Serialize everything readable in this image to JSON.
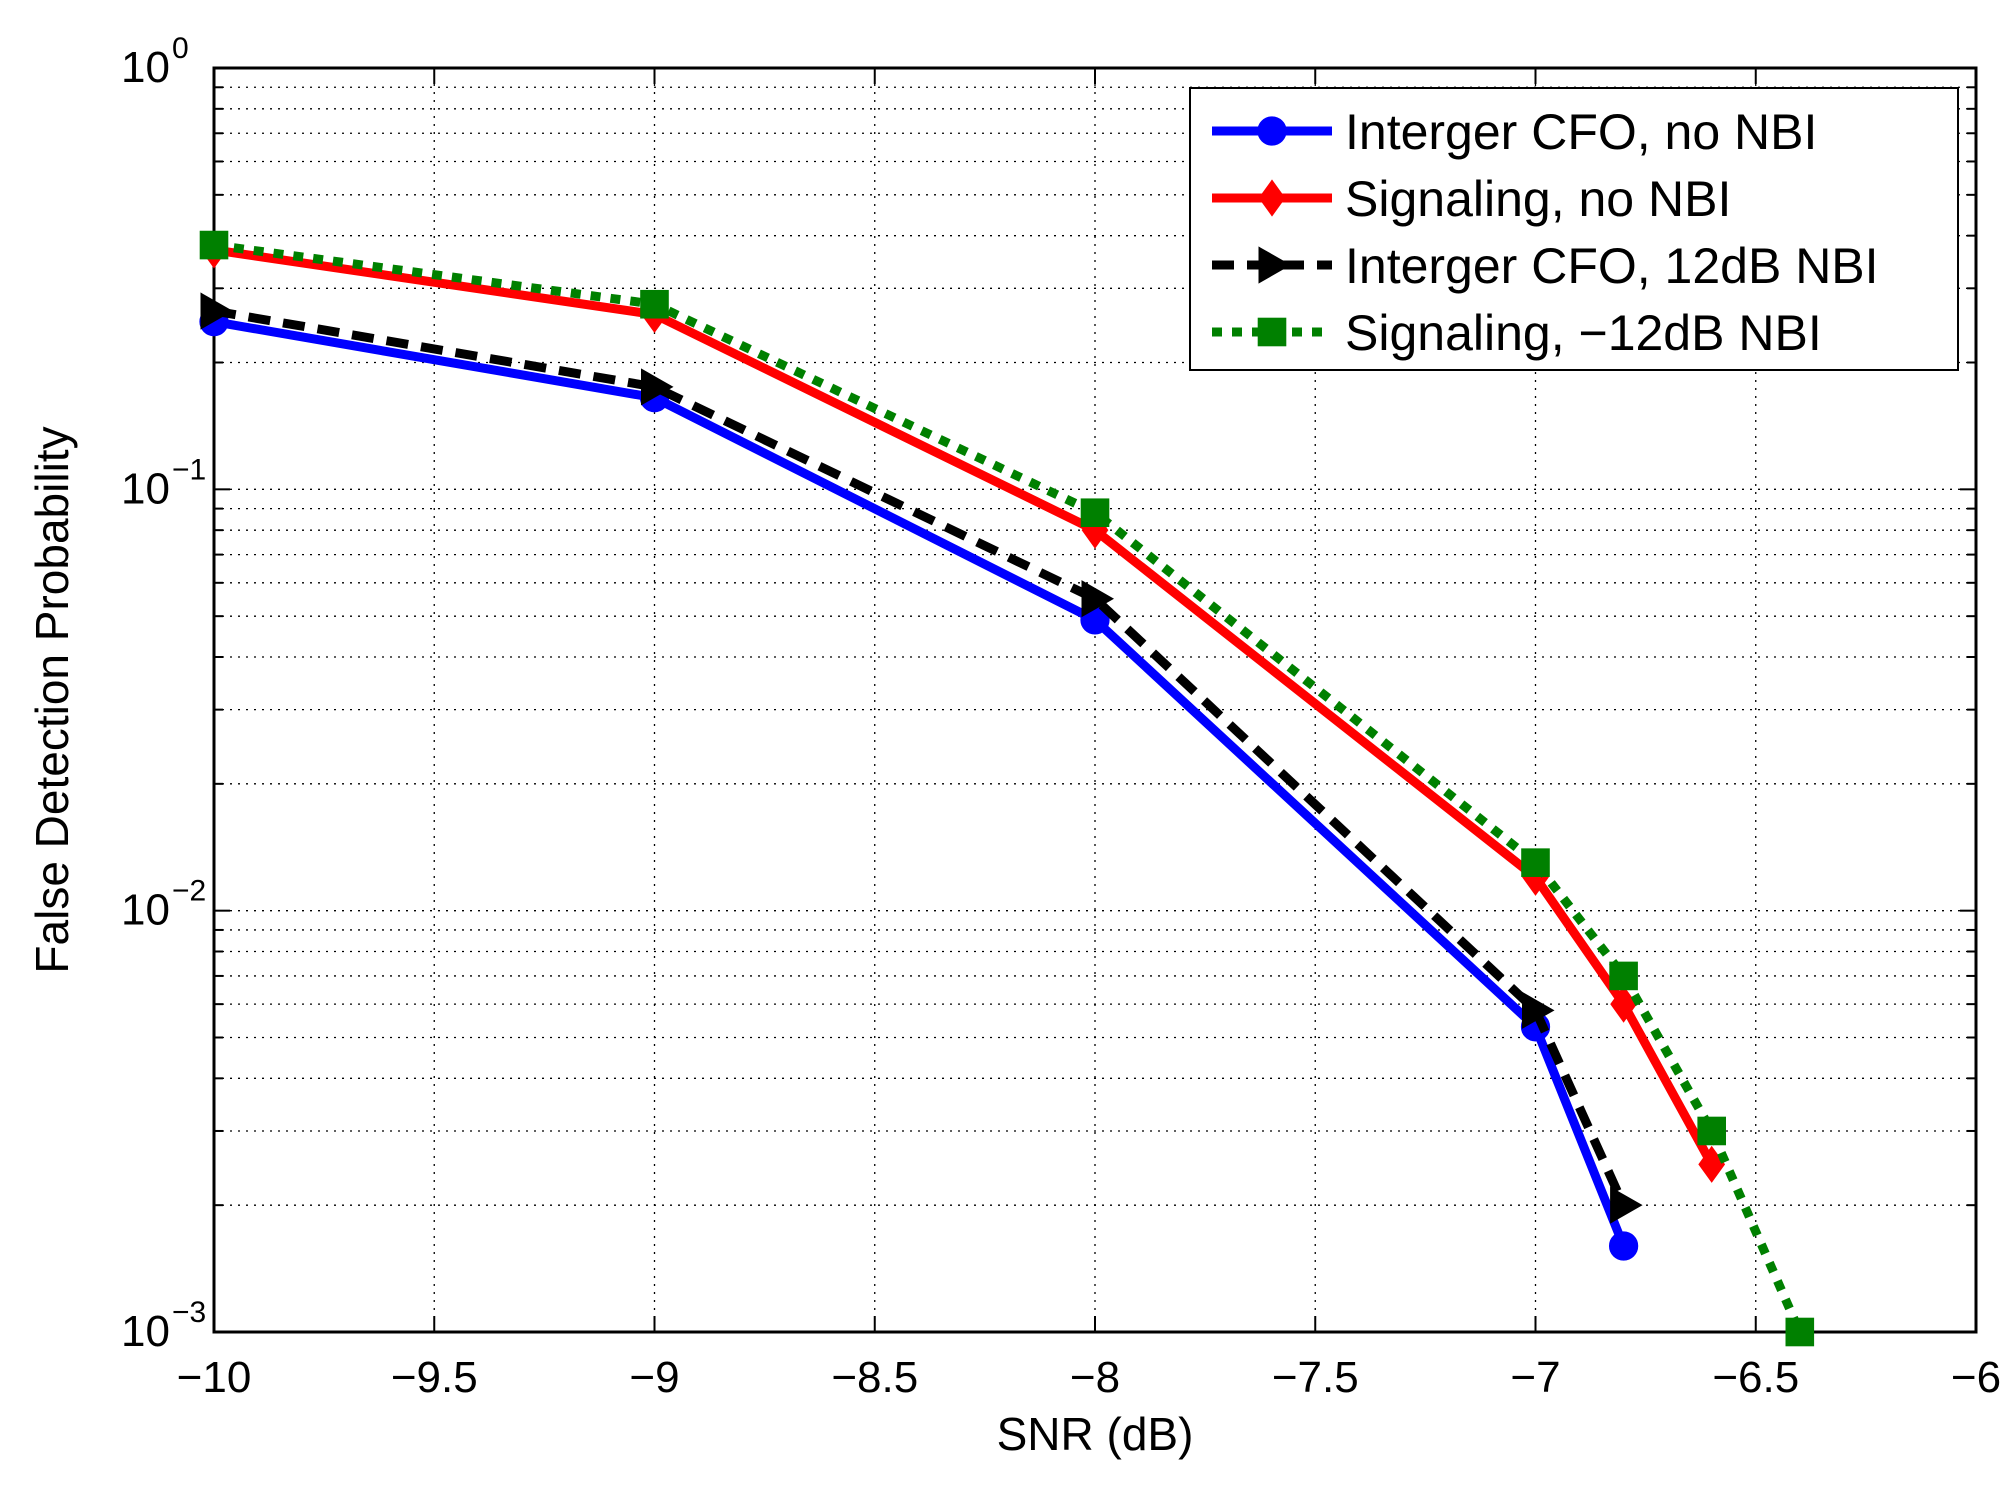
{
  "chart_data": {
    "type": "line",
    "title": "",
    "xlabel": "SNR (dB)",
    "ylabel": "False Detection Probability",
    "xlim": [
      -10,
      -6
    ],
    "ylim": [
      0.001,
      1
    ],
    "yscale": "log",
    "grid": true,
    "legend_position": "top-right",
    "x_ticks": [
      -10,
      -9.5,
      -9,
      -8.5,
      -8,
      -7.5,
      -7,
      -6.5,
      -6
    ],
    "x_tick_labels": [
      "−10",
      "−9.5",
      "−9",
      "−8.5",
      "−8",
      "−7.5",
      "−7",
      "−6.5",
      "−6"
    ],
    "y_ticks": [
      {
        "value": 1,
        "base": "10",
        "exp": "0"
      },
      {
        "value": 0.1,
        "base": "10",
        "exp": "−1"
      },
      {
        "value": 0.01,
        "base": "10",
        "exp": "−2"
      },
      {
        "value": 0.001,
        "base": "10",
        "exp": "−3"
      }
    ],
    "series": [
      {
        "name": "Interger CFO, no NBI",
        "color": "#0000ff",
        "dash": "solid",
        "marker": "circle",
        "x": [
          -10,
          -9,
          -8,
          -7,
          -6.8
        ],
        "y": [
          0.25,
          0.165,
          0.049,
          0.0053,
          0.0016
        ]
      },
      {
        "name": "Signaling, no NBI",
        "color": "#ff0000",
        "dash": "solid",
        "marker": "diamond",
        "x": [
          -10,
          -9,
          -8,
          -7,
          -6.8,
          -6.6
        ],
        "y": [
          0.37,
          0.26,
          0.08,
          0.012,
          0.006,
          0.0025
        ]
      },
      {
        "name": "Interger CFO, 12dB NBI",
        "color": "#000000",
        "dash": "dashed",
        "marker": "triangle-right",
        "x": [
          -10,
          -9,
          -8,
          -7,
          -6.8
        ],
        "y": [
          0.265,
          0.175,
          0.055,
          0.0058,
          0.002
        ]
      },
      {
        "name": "Signaling, −12dB NBI",
        "color": "#008000",
        "dash": "dotted",
        "marker": "square",
        "x": [
          -10,
          -9,
          -8,
          -7,
          -6.8,
          -6.6,
          -6.4
        ],
        "y": [
          0.38,
          0.275,
          0.088,
          0.013,
          0.007,
          0.003,
          0.001
        ]
      }
    ]
  }
}
